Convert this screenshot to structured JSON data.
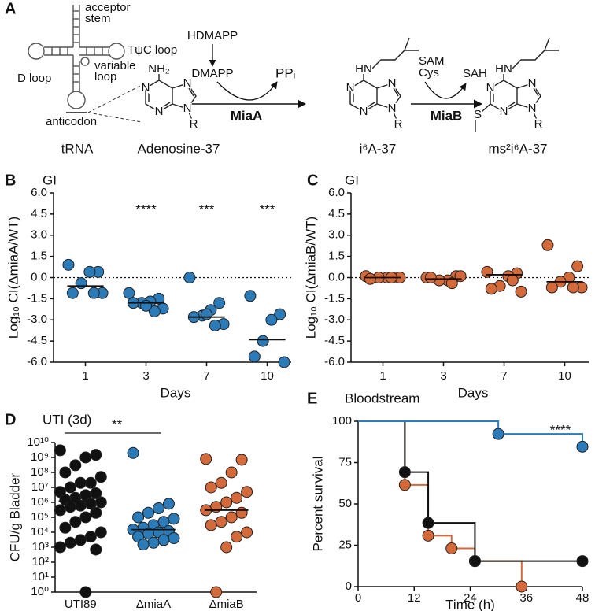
{
  "diagram": {
    "panel": "A",
    "trna": {
      "name": "tRNA",
      "acceptor": "acceptor",
      "stem": "stem",
      "tpsic_loop": "TψC loop",
      "d_loop": "D loop",
      "variable": "variable",
      "variable_loop": "loop",
      "anticodon": "anticodon"
    },
    "molecules": [
      {
        "name": "Adenosine-37",
        "atoms": [
          "NH₂",
          "N",
          "N",
          "N",
          "N",
          "R"
        ]
      },
      {
        "name": "i⁶A-37",
        "atoms": [
          "HN",
          "N",
          "N",
          "N",
          "N",
          "R"
        ]
      },
      {
        "name": "ms²i⁶A-37",
        "atoms": [
          "HN",
          "N",
          "N",
          "N",
          "N",
          "R",
          "S"
        ]
      }
    ],
    "step1": {
      "enzyme": "MiaA",
      "precursor": "HDMAPP",
      "substrate": "DMAPP",
      "product": "PPᵢ"
    },
    "step2": {
      "enzyme": "MiaB",
      "substrate1": "SAM",
      "substrate2": "Cys",
      "product": "SAH"
    }
  },
  "chart_data": [
    {
      "type": "strip",
      "panel": "B",
      "title": "GI",
      "ylabel": "Log₁₀ CI(ΔmiaA/WT)",
      "xlabel": "Days",
      "color": "#2b7bb9",
      "categories": [
        "1",
        "3",
        "7",
        "10"
      ],
      "groups": [
        [
          0.9,
          0.4,
          0.4,
          -0.4,
          -1.1,
          -1.1,
          -1.1
        ],
        [
          -1.1,
          -1.5,
          -1.7,
          -1.8,
          -1.8,
          -2.2,
          -2.4,
          -2.0
        ],
        [
          0.0,
          -1.8,
          -2.3,
          -2.7,
          -2.8,
          -3.3,
          -3.4,
          -2.6
        ],
        [
          -1.3,
          -2.6,
          -3.0,
          -4.5,
          -5.6,
          -6.0
        ]
      ],
      "medians": [
        -0.6,
        -1.8,
        -2.8,
        -4.4
      ],
      "annotations": [
        null,
        "****",
        "***",
        "***"
      ],
      "reference_line": 0,
      "ylim": [
        -6,
        6
      ],
      "yticks": [
        {
          "value": -6,
          "label": "-6.0"
        },
        {
          "value": -4.5,
          "label": "-4.5"
        },
        {
          "value": -3,
          "label": "-3.0"
        },
        {
          "value": -1.5,
          "label": "-1.5"
        },
        {
          "value": 0,
          "label": "0.0"
        },
        {
          "value": 1.5,
          "label": "1.5"
        },
        {
          "value": 3,
          "label": "3.0"
        },
        {
          "value": 4.5,
          "label": "4.5"
        },
        {
          "value": 6,
          "label": "6.0"
        }
      ]
    },
    {
      "type": "strip",
      "panel": "C",
      "title": "GI",
      "ylabel": "Log₁₀ CI(ΔmiaB/WT)",
      "xlabel": "Days",
      "color": "#d4693a",
      "categories": [
        "1",
        "3",
        "7",
        "10"
      ],
      "groups": [
        [
          0.1,
          0.0,
          0.0,
          0.0,
          -0.1,
          0.0,
          0.0
        ],
        [
          0.0,
          0.1,
          -0.2,
          -0.2,
          0.0,
          0.1,
          -0.4
        ],
        [
          0.4,
          0.3,
          0.1,
          -0.6,
          -0.8,
          -1.0,
          -0.2
        ],
        [
          2.3,
          0.8,
          0.0,
          -0.3,
          -0.7,
          -0.7,
          -0.7
        ]
      ],
      "medians": [
        0.0,
        -0.1,
        0.2,
        -0.3
      ],
      "reference_line": 0,
      "ylim": [
        -6,
        6
      ],
      "yticks": [
        {
          "value": -6,
          "label": "-6.0"
        },
        {
          "value": -4.5,
          "label": "-4.5"
        },
        {
          "value": -3,
          "label": "-3.0"
        },
        {
          "value": -1.5,
          "label": "-1.5"
        },
        {
          "value": 0,
          "label": "0.0"
        },
        {
          "value": 1.5,
          "label": "1.5"
        },
        {
          "value": 3,
          "label": "3.0"
        },
        {
          "value": 4.5,
          "label": "4.5"
        },
        {
          "value": 6,
          "label": "6.0"
        }
      ]
    },
    {
      "type": "strip",
      "panel": "D",
      "title": "UTI (3d)",
      "ylabel": "CFU/g Bladder",
      "log_scale": true,
      "categories": [
        "UTI89",
        "ΔmiaA",
        "ΔmiaB"
      ],
      "colors": [
        "#111111",
        "#2b7bb9",
        "#d4693a"
      ],
      "groups": [
        [
          3000000000.0,
          1500000000.0,
          1000000000.0,
          300000000.0,
          100000000.0,
          50000000.0,
          20000000.0,
          20000000.0,
          10000000.0,
          5000000.0,
          4000000.0,
          3000000.0,
          2000000.0,
          1500000.0,
          1000000.0,
          800000.0,
          600000.0,
          500000.0,
          300000.0,
          200000.0,
          100000.0,
          50000.0,
          20000.0,
          10000.0,
          5000.0,
          3000.0,
          2000.0,
          1000.0,
          700,
          1
        ],
        [
          2000000000.0,
          800000.0,
          400000.0,
          200000.0,
          100000.0,
          80000.0,
          50000.0,
          30000.0,
          20000.0,
          15000.0,
          12000.0,
          10000.0,
          8000.0,
          5000.0,
          4000.0,
          3000.0,
          2000.0,
          1500.0
        ],
        [
          800000000.0,
          700000000.0,
          100000000.0,
          20000000.0,
          10000000.0,
          5000000.0,
          2000000.0,
          1000000.0,
          500000.0,
          300000.0,
          200000.0,
          100000.0,
          50000.0,
          30000.0,
          10000.0,
          5000.0,
          1000.0,
          1
        ]
      ],
      "medians": [
        1200000.0,
        15000.0,
        300000.0
      ],
      "significance": {
        "text": "**",
        "from": "UTI89",
        "to": "ΔmiaA"
      },
      "ylim": [
        1,
        10000000000.0
      ],
      "yticks": [
        {
          "value": 1,
          "label": "10⁰"
        },
        {
          "value": 10,
          "label": "10¹"
        },
        {
          "value": 100,
          "label": "10²"
        },
        {
          "value": 1000,
          "label": "10³"
        },
        {
          "value": 10000,
          "label": "10⁴"
        },
        {
          "value": 100000,
          "label": "10⁵"
        },
        {
          "value": 1000000,
          "label": "10⁶"
        },
        {
          "value": 10000000,
          "label": "10⁷"
        },
        {
          "value": 100000000,
          "label": "10⁸"
        },
        {
          "value": 1000000000,
          "label": "10⁹"
        },
        {
          "value": 10000000000,
          "label": "10¹⁰"
        }
      ]
    },
    {
      "type": "line",
      "step": true,
      "panel": "E",
      "title": "Bloodstream",
      "xlabel": "Time (h)",
      "ylabel": "Percent survival",
      "annotation": "****",
      "series": [
        {
          "color": "#d4693a",
          "x": [
            0,
            10,
            15,
            20,
            25,
            35
          ],
          "values": [
            100,
            61.5,
            30.8,
            23.1,
            15.4,
            0
          ]
        },
        {
          "color": "#111111",
          "x": [
            0,
            10,
            15,
            25,
            48
          ],
          "values": [
            100,
            69.2,
            38.5,
            15.4,
            15.4
          ]
        },
        {
          "color": "#2b7bb9",
          "x": [
            0,
            30,
            48
          ],
          "values": [
            100,
            92.3,
            84.6
          ]
        }
      ],
      "xlim": [
        0,
        48
      ],
      "xticks": [
        0,
        12,
        24,
        36,
        48
      ],
      "ylim": [
        0,
        100
      ],
      "yticks": [
        0,
        25,
        50,
        75,
        100
      ]
    }
  ]
}
